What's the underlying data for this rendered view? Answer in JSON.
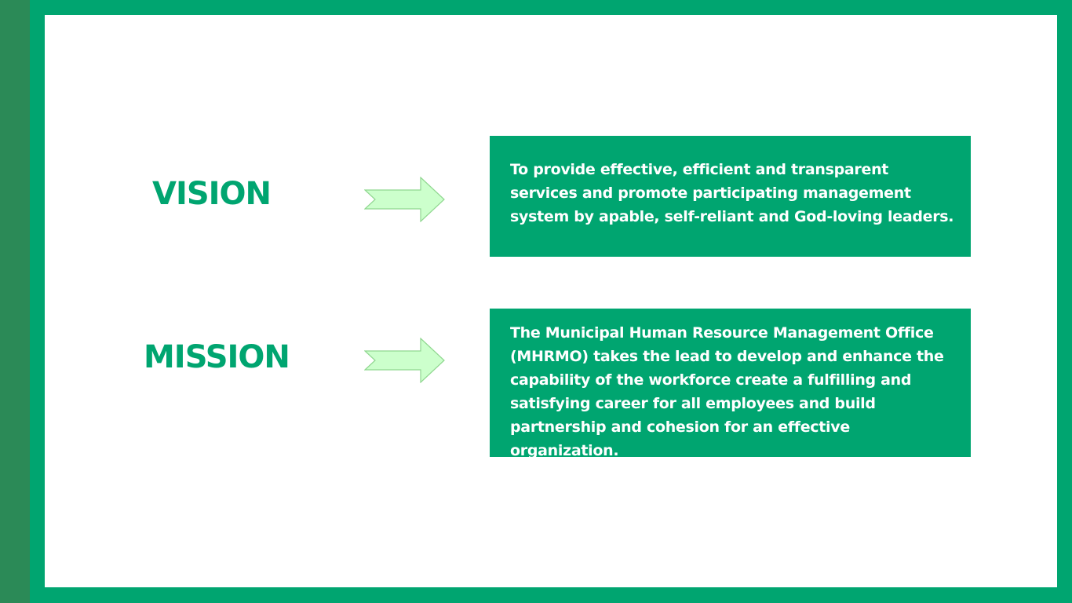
{
  "theme": {
    "accent": "#00a570",
    "stripe": "#2b8a57",
    "arrow_fill": "#ccffcc",
    "arrow_stroke": "#8fd68f"
  },
  "vision": {
    "heading": "VISION",
    "statement": "To provide effective, efficient and transparent services and promote participating management system by apable, self-reliant and God-loving leaders.",
    "arrow_icon": "right-arrow"
  },
  "mission": {
    "heading": "MISSION",
    "statement": "The Municipal Human Resource Management Office (MHRMO) takes the lead to develop and enhance the capability of the workforce create a fulfilling and satisfying career for all employees and build partnership and cohesion for an effective organization.",
    "arrow_icon": "right-arrow"
  }
}
